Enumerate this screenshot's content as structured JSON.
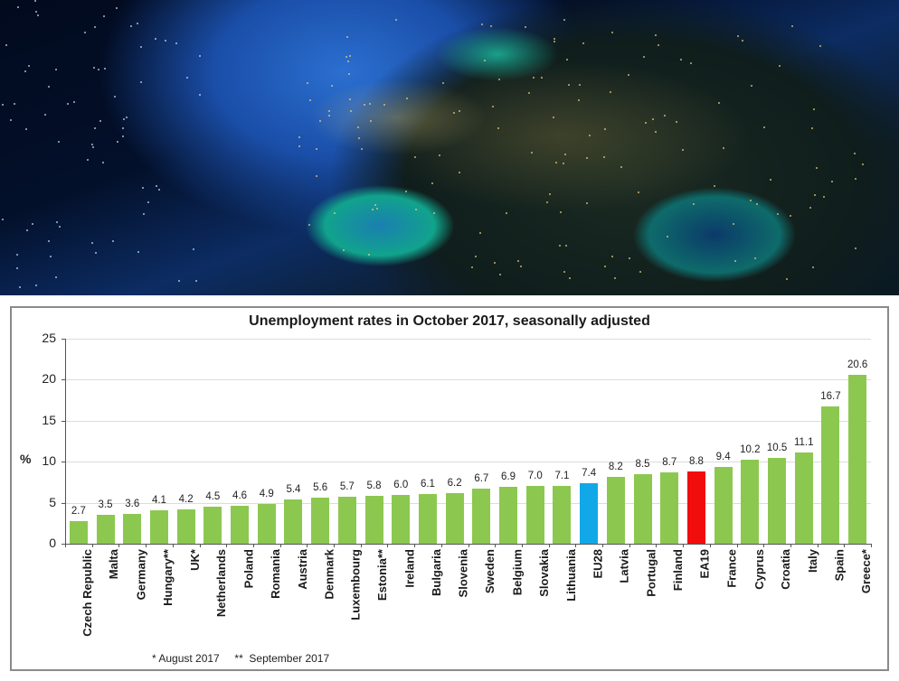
{
  "hero_image": {
    "description": "Night satellite view of Europe with city lights and glowing coastlines",
    "colors": {
      "space": "#020a1e",
      "ocean": "#1a4ea8",
      "coast_glow": "#11c9a0",
      "city_lights": "#f5d27a"
    }
  },
  "chart_data": {
    "type": "bar",
    "title": "Unemployment rates in October 2017, seasonally adjusted",
    "xlabel": "",
    "ylabel": "%",
    "ylim": [
      0,
      25
    ],
    "yticks": [
      0,
      5,
      10,
      15,
      20,
      25
    ],
    "grid": true,
    "legend": null,
    "categories": [
      "Czech Republic",
      "Malta",
      "Germany",
      "Hungary**",
      "UK*",
      "Netherlands",
      "Poland",
      "Romania",
      "Austria",
      "Denmark",
      "Luxembourg",
      "Estonia**",
      "Ireland",
      "Bulgaria",
      "Slovenia",
      "Sweden",
      "Belgium",
      "Slovakia",
      "Lithuania",
      "EU28",
      "Latvia",
      "Portugal",
      "Finland",
      "EA19",
      "France",
      "Cyprus",
      "Croatia",
      "Italy",
      "Spain",
      "Greece*"
    ],
    "values": [
      2.7,
      3.5,
      3.6,
      4.1,
      4.2,
      4.5,
      4.6,
      4.9,
      5.4,
      5.6,
      5.7,
      5.8,
      6.0,
      6.1,
      6.2,
      6.7,
      6.9,
      7.0,
      7.1,
      7.4,
      8.2,
      8.5,
      8.7,
      8.8,
      9.4,
      10.2,
      10.5,
      11.1,
      16.7,
      20.6
    ],
    "value_labels": [
      "2.7",
      "3.5",
      "3.6",
      "4.1",
      "4.2",
      "4.5",
      "4.6",
      "4.9",
      "5.4",
      "5.6",
      "5.7",
      "5.8",
      "6.0",
      "6.1",
      "6.2",
      "6.7",
      "6.9",
      "7.0",
      "7.1",
      "7.4",
      "8.2",
      "8.5",
      "8.7",
      "8.8",
      "9.4",
      "10.2",
      "10.5",
      "11.1",
      "16.7",
      "20.6"
    ],
    "colors": {
      "default": "#8cc850",
      "EU28": "#12a8e8",
      "EA19": "#f20d0d"
    },
    "footnotes": [
      "* August 2017",
      "** September 2017"
    ]
  },
  "footnote_text": "* August 2017     **  September 2017"
}
